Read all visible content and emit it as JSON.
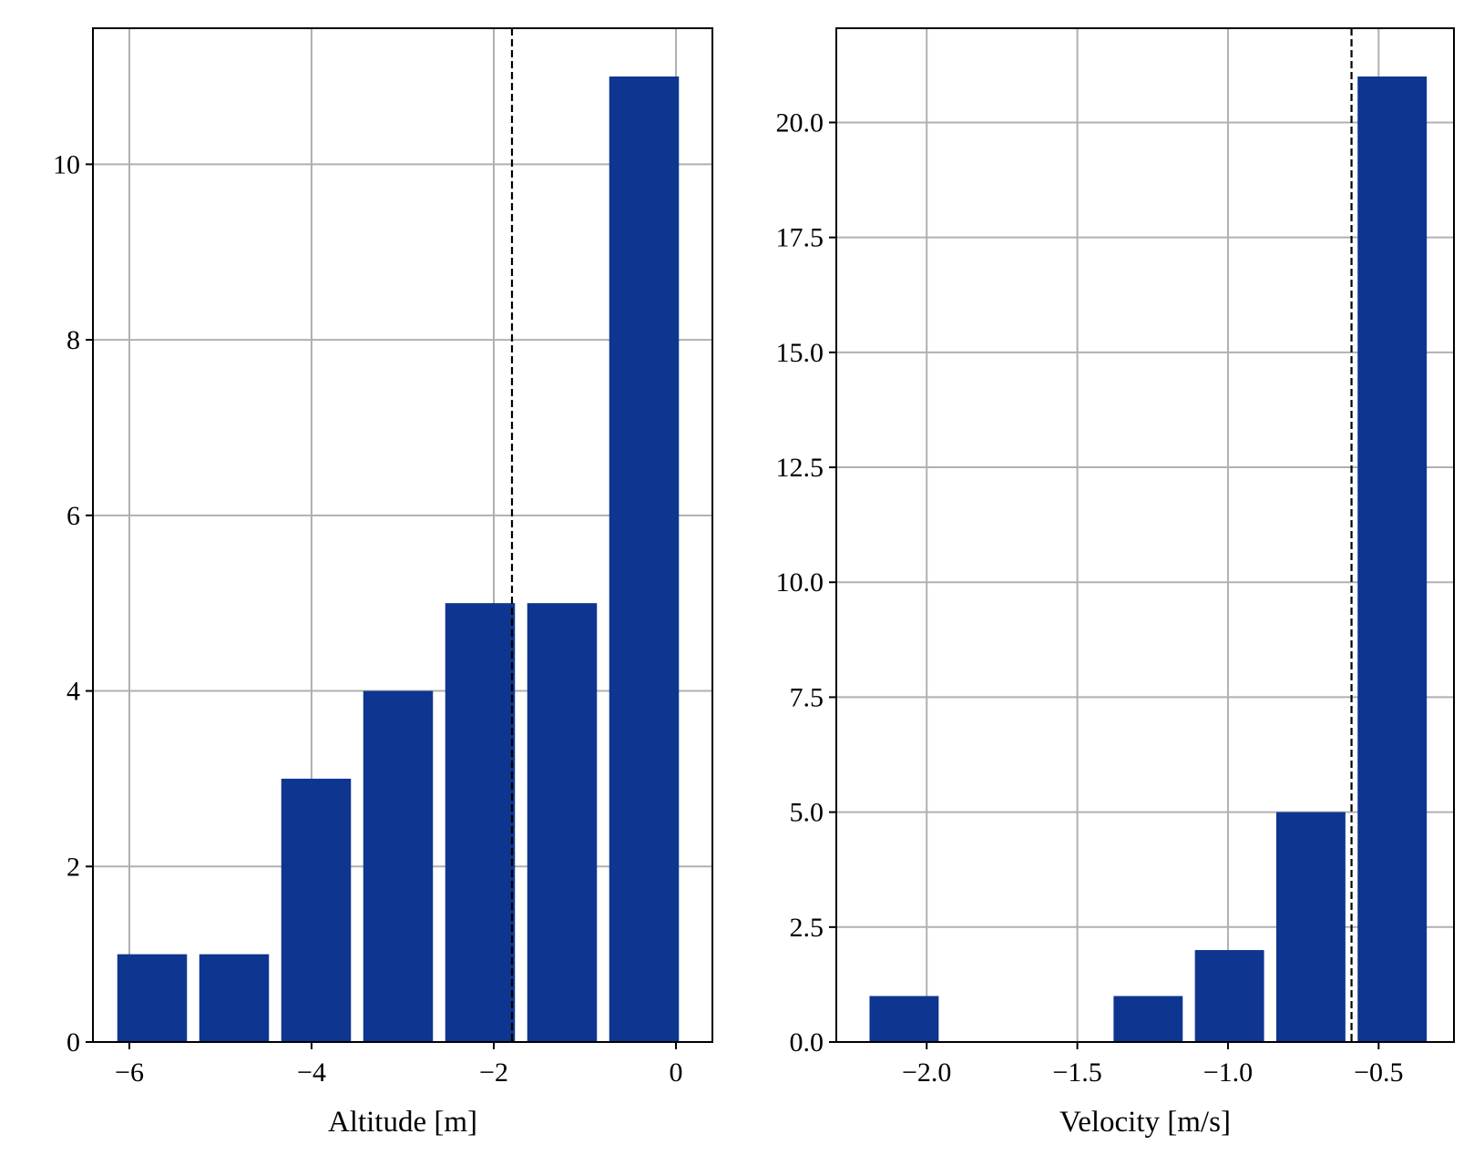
{
  "colors": {
    "bar": "#0e3590",
    "grid": "#b0b0b0",
    "axis": "#000000",
    "background": "#ffffff",
    "reference_line": "#000000"
  },
  "chart_data": [
    {
      "type": "bar",
      "xlabel": "Altitude [m]",
      "ylabel": "",
      "grid": true,
      "xlim": [
        -6.4,
        0.4
      ],
      "ylim": [
        0,
        11.55
      ],
      "xticks": [
        -6,
        -4,
        -2,
        0
      ],
      "xtick_labels": [
        "−6",
        "−4",
        "−2",
        "0"
      ],
      "yticks": [
        0,
        2,
        4,
        6,
        8,
        10
      ],
      "ytick_labels": [
        "0",
        "2",
        "4",
        "6",
        "8",
        "10"
      ],
      "bin_edges": [
        -6.2,
        -5.3,
        -4.4,
        -3.5,
        -2.6,
        -1.7,
        -0.8,
        0.1
      ],
      "values": [
        1,
        1,
        3,
        4,
        5,
        5,
        11
      ],
      "reference_line": {
        "x": -1.8,
        "style": "dashed"
      }
    },
    {
      "type": "bar",
      "xlabel": "Velocity [m/s]",
      "ylabel": "",
      "grid": true,
      "xlim": [
        -2.3,
        -0.25
      ],
      "ylim": [
        0,
        22.05
      ],
      "xticks": [
        -2.0,
        -1.5,
        -1.0,
        -0.5
      ],
      "xtick_labels": [
        "−2.0",
        "−1.5",
        "−1.0",
        "−0.5"
      ],
      "yticks": [
        0,
        2.5,
        5,
        7.5,
        10,
        12.5,
        15,
        17.5,
        20
      ],
      "ytick_labels": [
        "0.0",
        "2.5",
        "5.0",
        "7.5",
        "10.0",
        "12.5",
        "15.0",
        "17.5",
        "20.0"
      ],
      "bin_edges": [
        -2.21,
        -1.94,
        -1.67,
        -1.4,
        -1.13,
        -0.86,
        -0.59,
        -0.32
      ],
      "values": [
        1,
        0,
        0,
        1,
        2,
        5,
        21
      ],
      "reference_line": {
        "x": -0.59,
        "style": "dashed"
      }
    }
  ]
}
